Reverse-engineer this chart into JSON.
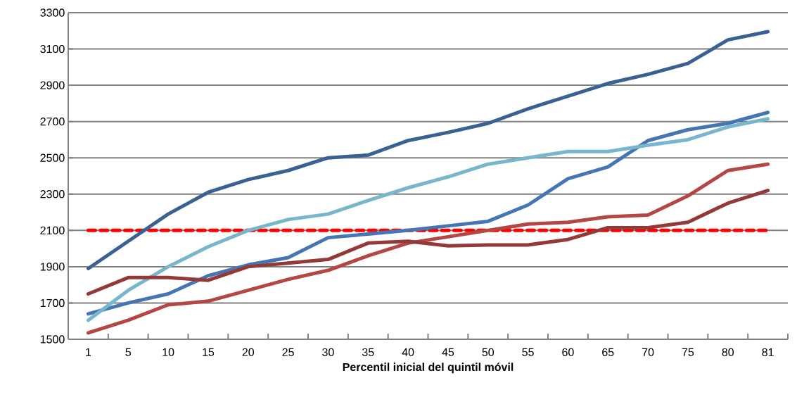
{
  "chart_data": {
    "type": "line",
    "xlabel": "Percentil inicial del quintil móvil",
    "categories": [
      "1",
      "5",
      "10",
      "15",
      "20",
      "25",
      "30",
      "35",
      "40",
      "45",
      "50",
      "55",
      "60",
      "65",
      "70",
      "75",
      "80",
      "81"
    ],
    "series": [
      {
        "color": "#3a6193",
        "values": [
          1890,
          2040,
          2190,
          2310,
          2380,
          2430,
          2500,
          2515,
          2595,
          2640,
          2690,
          2770,
          2840,
          2910,
          2960,
          3020,
          3150,
          3195
        ]
      },
      {
        "color": "#4675b3",
        "values": [
          1640,
          1700,
          1750,
          1850,
          1910,
          1950,
          2060,
          2080,
          2100,
          2125,
          2150,
          2240,
          2385,
          2450,
          2595,
          2655,
          2690,
          2750
        ]
      },
      {
        "color": "#78b6cd",
        "values": [
          1605,
          1770,
          1900,
          2010,
          2100,
          2160,
          2190,
          2265,
          2335,
          2395,
          2465,
          2500,
          2535,
          2535,
          2570,
          2600,
          2670,
          2715
        ]
      },
      {
        "color": "#b44643",
        "values": [
          1535,
          1605,
          1690,
          1710,
          1770,
          1830,
          1880,
          1960,
          2030,
          2065,
          2100,
          2135,
          2145,
          2175,
          2185,
          2290,
          2430,
          2465
        ]
      },
      {
        "color": "#933a38",
        "values": [
          1750,
          1840,
          1840,
          1825,
          1900,
          1920,
          1940,
          2030,
          2040,
          2015,
          2020,
          2020,
          2050,
          2115,
          2115,
          2145,
          2250,
          2320
        ]
      }
    ],
    "ref_lines": [
      {
        "axis": "y",
        "value": 2100,
        "color": "#ff0000",
        "line_style": "dashed"
      }
    ],
    "ylim": [
      1500,
      3300
    ],
    "yticks": [
      1500,
      1700,
      1900,
      2100,
      2300,
      2500,
      2700,
      2900,
      3100,
      3300
    ],
    "grid": "y",
    "marker": "none",
    "line_style": "solid"
  }
}
